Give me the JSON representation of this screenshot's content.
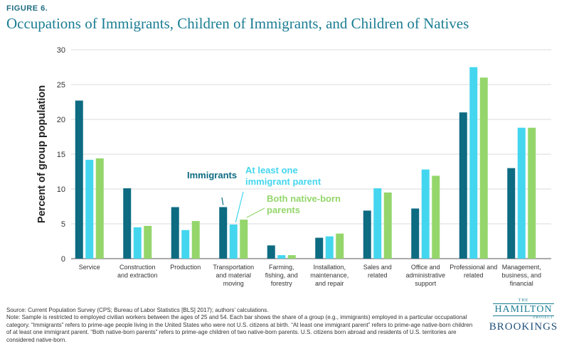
{
  "figure_label": "FIGURE 6.",
  "chart_data": {
    "type": "bar",
    "title": "Occupations of Immigrants, Children of Immigrants, and Children of Natives",
    "xlabel": "",
    "ylabel": "Percent of group population",
    "ylim": [
      0,
      30
    ],
    "yticks": [
      "0",
      "5",
      "10",
      "15",
      "20",
      "25",
      "30"
    ],
    "grid": true,
    "categories": [
      [
        "Service"
      ],
      [
        "Construction",
        "and extraction"
      ],
      [
        "Production"
      ],
      [
        "Transportation",
        "and material",
        "moving"
      ],
      [
        "Farming,",
        "fishing, and",
        "forestry"
      ],
      [
        "Installation,",
        "maintenance,",
        "and repair"
      ],
      [
        "Sales and",
        "related"
      ],
      [
        "Office and",
        "administrative",
        "support"
      ],
      [
        "Professional and",
        "related"
      ],
      [
        "Management,",
        "business, and",
        "financial"
      ]
    ],
    "series": [
      {
        "name": "Immigrants",
        "color": "#0d6b82",
        "values": [
          22.7,
          10.1,
          7.4,
          7.4,
          1.9,
          3.0,
          6.9,
          7.2,
          21.0,
          13.0
        ]
      },
      {
        "name": "At least one immigrant parent",
        "color": "#44d6ee",
        "values": [
          14.2,
          4.5,
          4.1,
          4.9,
          0.5,
          3.2,
          10.1,
          12.8,
          27.5,
          18.8
        ]
      },
      {
        "name": "Both native-born parents",
        "color": "#94d66b",
        "values": [
          14.4,
          4.7,
          5.4,
          5.6,
          0.5,
          3.6,
          9.5,
          11.9,
          26.0,
          18.8
        ]
      }
    ],
    "annotations": [
      {
        "series": 0,
        "lines": [
          "Immigrants"
        ]
      },
      {
        "series": 1,
        "lines": [
          "At least one",
          "immigrant parent"
        ]
      },
      {
        "series": 2,
        "lines": [
          "Both native-born",
          "parents"
        ]
      }
    ]
  },
  "source": "Source: Current Population Survey (CPS; Bureau of Labor Statistics [BLS] 2017); authors’ calculations.",
  "note": "Note: Sample is restricted to employed civilian workers between the ages of 25 and 54. Each bar shows the share of a group (e.g., immigrants) employed in a particular occupational category. “Immigrants” refers to prime-age people living in the United States who were not U.S. citizens at birth. “At least one immigrant parent” refers to prime-age native-born children of at least one immigrant parent. “Both native-born parents” refers to prime-age children of two native-born parents. U.S. citizens born abroad and residents of U.S. territories are considered native-born.",
  "logo": {
    "the": "THE",
    "hamilton": "HAMILTON",
    "project": "PROJECT",
    "brookings": "BROOKINGS"
  }
}
